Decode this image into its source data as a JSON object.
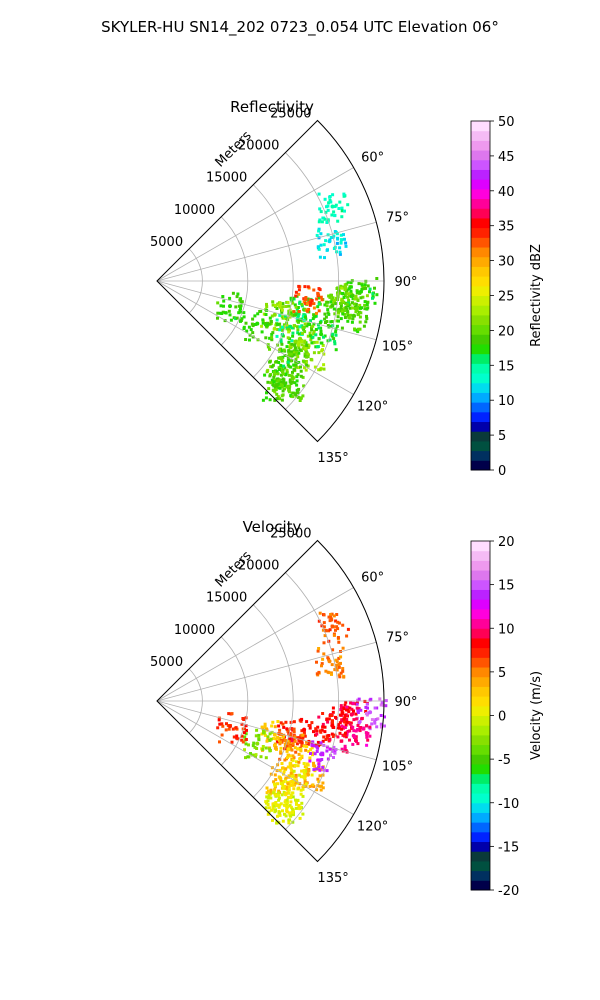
{
  "figure": {
    "suptitle": "SKYLER-HU  SN14_202  0723_0.054 UTC Elevation 06°"
  },
  "chart_data": [
    {
      "type": "polar-sector",
      "title": "Reflectivity",
      "range_label": "Meters",
      "range_ticks": [
        5000,
        10000,
        15000,
        20000,
        25000
      ],
      "range_max": 25000,
      "azimuth_ticks": [
        "60°",
        "75°",
        "90°",
        "105°",
        "120°",
        "135°"
      ],
      "azimuth_values": [
        60,
        75,
        90,
        105,
        120,
        135
      ],
      "azimuth_limits": [
        45,
        135
      ],
      "colorbar": {
        "label": "Reflectivity dBZ",
        "min": 0,
        "max": 50,
        "ticks": [
          "0",
          "5",
          "10",
          "15",
          "20",
          "25",
          "30",
          "35",
          "40",
          "45",
          "50"
        ],
        "colors": [
          "#00004a",
          "#003060",
          "#005040",
          "#0a3a3a",
          "#0000aa",
          "#0022ff",
          "#0066ff",
          "#00aaff",
          "#00ddee",
          "#00ffcc",
          "#00ffaa",
          "#00ee66",
          "#22dd00",
          "#44cc00",
          "#66dd00",
          "#88e000",
          "#aaee00",
          "#ccf000",
          "#eeee00",
          "#ffdd00",
          "#ffc800",
          "#ffaa00",
          "#ff8800",
          "#ff5500",
          "#ff2200",
          "#ff0000",
          "#ff0055",
          "#ff0099",
          "#ff00dd",
          "#dd00ff",
          "#bb22ff",
          "#cc55ff",
          "#dd77ee",
          "#ee99ee",
          "#f5bbf5",
          "#ffddff"
        ]
      },
      "echoes": [
        {
          "az": 94,
          "r": 21500,
          "dbz": 20
        },
        {
          "az": 93,
          "r": 22500,
          "dbz": 18
        },
        {
          "az": 96,
          "r": 20500,
          "dbz": 21
        },
        {
          "az": 98,
          "r": 19500,
          "dbz": 19
        },
        {
          "az": 101,
          "r": 16500,
          "dbz": 17
        },
        {
          "az": 104,
          "r": 15000,
          "dbz": 20
        },
        {
          "az": 106,
          "r": 13500,
          "dbz": 22
        },
        {
          "az": 109,
          "r": 15500,
          "dbz": 16
        },
        {
          "az": 112,
          "r": 17000,
          "dbz": 21
        },
        {
          "az": 116,
          "r": 18500,
          "dbz": 22
        },
        {
          "az": 119,
          "r": 17000,
          "dbz": 19
        },
        {
          "az": 122,
          "r": 16000,
          "dbz": 20
        },
        {
          "az": 126,
          "r": 17500,
          "dbz": 18
        },
        {
          "az": 129,
          "r": 18500,
          "dbz": 20
        },
        {
          "az": 131,
          "r": 17500,
          "dbz": 19
        },
        {
          "az": 113,
          "r": 12000,
          "dbz": 18
        },
        {
          "az": 108,
          "r": 19000,
          "dbz": 17
        },
        {
          "az": 100,
          "r": 22000,
          "dbz": 19
        },
        {
          "az": 97,
          "r": 16500,
          "dbz": 33
        },
        {
          "az": 67,
          "r": 21000,
          "dbz": 14
        },
        {
          "az": 77,
          "r": 19500,
          "dbz": 12
        },
        {
          "az": 109,
          "r": 8500,
          "dbz": 18
        }
      ]
    },
    {
      "type": "polar-sector",
      "title": "Velocity",
      "range_label": "Meters",
      "range_ticks": [
        5000,
        10000,
        15000,
        20000,
        25000
      ],
      "range_max": 25000,
      "azimuth_ticks": [
        "60°",
        "75°",
        "90°",
        "105°",
        "120°",
        "135°"
      ],
      "azimuth_values": [
        60,
        75,
        90,
        105,
        120,
        135
      ],
      "azimuth_limits": [
        45,
        135
      ],
      "colorbar": {
        "label": "Velocity (m/s)",
        "min": -20,
        "max": 20,
        "ticks": [
          "-20",
          "-15",
          "-10",
          "-5",
          "0",
          "5",
          "10",
          "15",
          "20"
        ],
        "colors": [
          "#00004a",
          "#003060",
          "#005040",
          "#0a3a3a",
          "#0000aa",
          "#0022ff",
          "#0066ff",
          "#00aaff",
          "#00ddee",
          "#00ffcc",
          "#00ffaa",
          "#00ee66",
          "#22dd00",
          "#44cc00",
          "#66dd00",
          "#88e000",
          "#aaee00",
          "#ccf000",
          "#eeee00",
          "#ffdd00",
          "#ffc800",
          "#ffaa00",
          "#ff8800",
          "#ff5500",
          "#ff2200",
          "#ff0000",
          "#ff0055",
          "#ff0099",
          "#ff00dd",
          "#dd00ff",
          "#bb22ff",
          "#cc55ff",
          "#dd77ee",
          "#ee99ee",
          "#f5bbf5",
          "#ffddff"
        ]
      },
      "echoes": [
        {
          "az": 94,
          "r": 21500,
          "v": 9
        },
        {
          "az": 93,
          "r": 23500,
          "v": 15
        },
        {
          "az": 96,
          "r": 20500,
          "v": 9
        },
        {
          "az": 98,
          "r": 19500,
          "v": 8
        },
        {
          "az": 101,
          "r": 16500,
          "v": 8
        },
        {
          "az": 104,
          "r": 15000,
          "v": 7
        },
        {
          "az": 106,
          "r": 13500,
          "v": 3
        },
        {
          "az": 109,
          "r": 15500,
          "v": 5
        },
        {
          "az": 112,
          "r": 17000,
          "v": 2
        },
        {
          "az": 116,
          "r": 18500,
          "v": 4
        },
        {
          "az": 119,
          "r": 17000,
          "v": 1
        },
        {
          "az": 122,
          "r": 16000,
          "v": 3
        },
        {
          "az": 126,
          "r": 17500,
          "v": 1
        },
        {
          "az": 129,
          "r": 18500,
          "v": 0
        },
        {
          "az": 131,
          "r": 17500,
          "v": 0
        },
        {
          "az": 113,
          "r": 12000,
          "v": -3
        },
        {
          "az": 108,
          "r": 19000,
          "v": 14
        },
        {
          "az": 100,
          "r": 22000,
          "v": 10
        },
        {
          "az": 67,
          "r": 21000,
          "v": 6
        },
        {
          "az": 77,
          "r": 19500,
          "v": 5
        },
        {
          "az": 109,
          "r": 8500,
          "v": 7
        }
      ]
    }
  ]
}
